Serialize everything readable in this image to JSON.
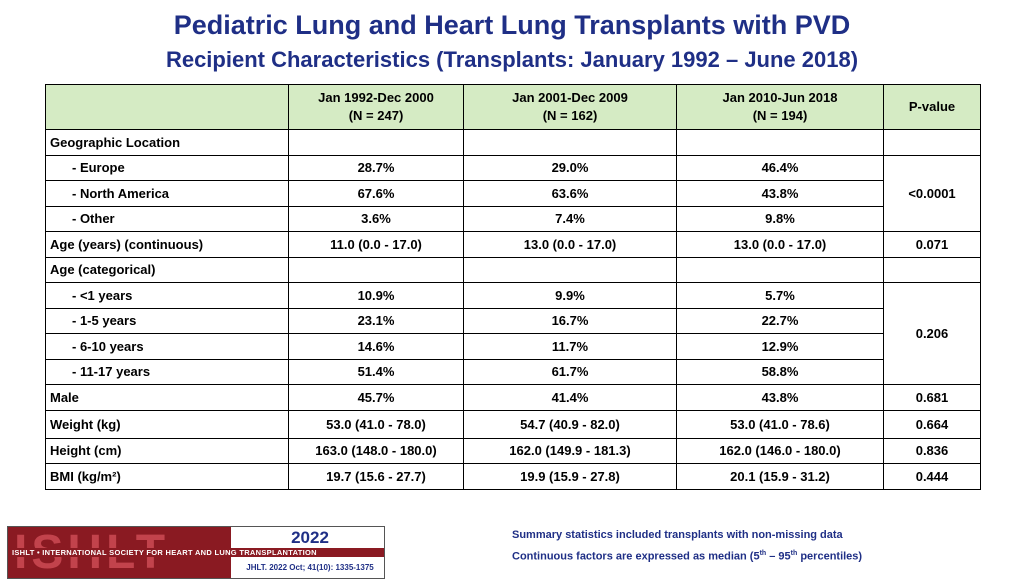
{
  "title": "Pediatric Lung and Heart Lung Transplants with PVD",
  "subtitle": "Recipient Characteristics (Transplants: January 1992 – June 2018)",
  "table": {
    "headers": [
      {
        "line1": "Jan 1992-Dec 2000",
        "line2": "(N = 247)"
      },
      {
        "line1": "Jan 2001-Dec 2009",
        "line2": "(N = 162)"
      },
      {
        "line1": "Jan 2010-Jun 2018",
        "line2": "(N = 194)"
      },
      {
        "line1": "P-value"
      }
    ],
    "sections": {
      "geo": "Geographic Location",
      "age_cat": "Age (categorical)"
    },
    "rows": [
      {
        "label": "- Europe",
        "c1": "28.7%",
        "c2": "29.0%",
        "c3": "46.4%"
      },
      {
        "label": "- North America",
        "c1": "67.6%",
        "c2": "63.6%",
        "c3": "43.8%"
      },
      {
        "label": "- Other",
        "c1": "3.6%",
        "c2": "7.4%",
        "c3": "9.8%"
      },
      {
        "label": "Age (years) (continuous)",
        "c1": "11.0 (0.0 - 17.0)",
        "c2": "13.0 (0.0 - 17.0)",
        "c3": "13.0 (0.0 - 17.0)",
        "p": "0.071"
      },
      {
        "label": "- <1 years",
        "c1": "10.9%",
        "c2": "9.9%",
        "c3": "5.7%"
      },
      {
        "label": "- 1-5 years",
        "c1": "23.1%",
        "c2": "16.7%",
        "c3": "22.7%"
      },
      {
        "label": "- 6-10 years",
        "c1": "14.6%",
        "c2": "11.7%",
        "c3": "12.9%"
      },
      {
        "label": "- 11-17 years",
        "c1": "51.4%",
        "c2": "61.7%",
        "c3": "58.8%"
      },
      {
        "label": "Male",
        "c1": "45.7%",
        "c2": "41.4%",
        "c3": "43.8%",
        "p": "0.681"
      },
      {
        "label": "Weight (kg)",
        "c1": "53.0 (41.0 - 78.0)",
        "c2": "54.7 (40.9 - 82.0)",
        "c3": "53.0 (41.0 - 78.6)",
        "p": "0.664"
      },
      {
        "label": "Height (cm)",
        "c1": "163.0 (148.0 - 180.0)",
        "c2": "162.0 (149.9 - 181.3)",
        "c3": "162.0 (146.0 - 180.0)",
        "p": "0.836"
      },
      {
        "label": "BMI (kg/m²)",
        "c1": "19.7 (15.6 - 27.7)",
        "c2": "19.9 (15.9 - 27.8)",
        "c3": "20.1 (15.9 - 31.2)",
        "p": "0.444"
      }
    ],
    "p_geo": "<0.0001",
    "p_age_cat": "0.206"
  },
  "logo": {
    "letters": "ISHLT",
    "band": "ISHLT • INTERNATIONAL SOCIETY FOR HEART AND LUNG TRANSPLANTATION",
    "year": "2022",
    "citation": "JHLT. 2022 Oct; 41(10): 1335-1375"
  },
  "notes": {
    "line1": "Summary statistics included transplants with non-missing data",
    "line2_pre": "Continuous factors are expressed as median (5",
    "line2_sup1": "th",
    "line2_mid": " – 95",
    "line2_sup2": "th",
    "line2_post": " percentiles)"
  },
  "colors": {
    "title": "#1f2f86",
    "header_fill": "#d5ebc4",
    "logo_red": "#8a1a22"
  }
}
